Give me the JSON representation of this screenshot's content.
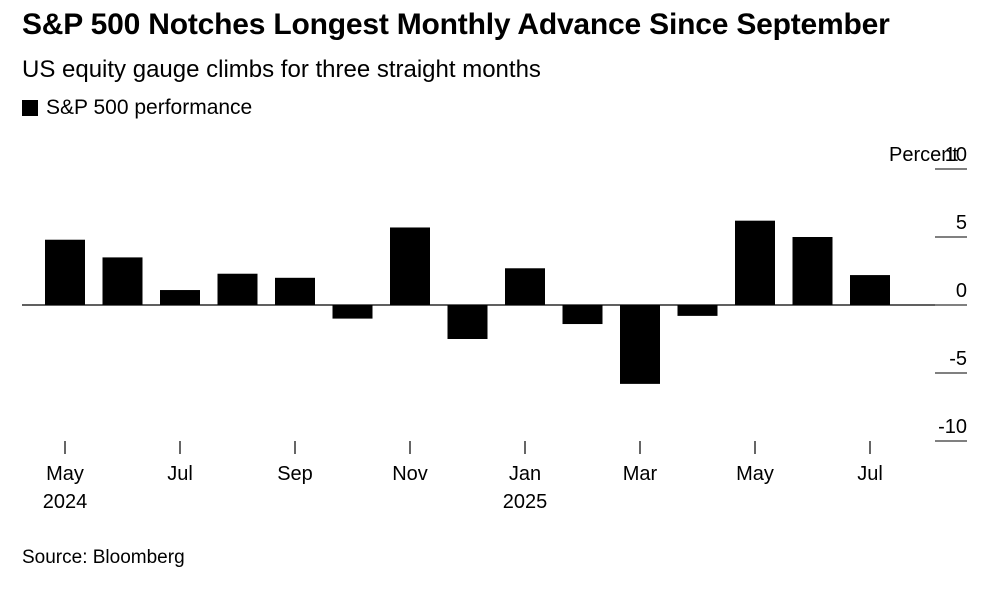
{
  "title": "S&P 500 Notches Longest Monthly Advance Since September",
  "subtitle": "US equity gauge climbs for three straight months",
  "legend": {
    "label": "S&P 500 performance",
    "color": "#000000"
  },
  "source": "Source: Bloomberg",
  "chart_data": {
    "type": "bar",
    "title": "S&P 500 Notches Longest Monthly Advance Since September",
    "subtitle": "US equity gauge climbs for three straight months",
    "unit": "Percent",
    "categories": [
      "May 2024",
      "Jun 2024",
      "Jul 2024",
      "Aug 2024",
      "Sep 2024",
      "Oct 2024",
      "Nov 2024",
      "Dec 2024",
      "Jan 2025",
      "Feb 2025",
      "Mar 2025",
      "Apr 2025",
      "May 2025",
      "Jun 2025",
      "Jul 2025"
    ],
    "series": [
      {
        "name": "S&P 500 performance",
        "values": [
          4.8,
          3.5,
          1.1,
          2.3,
          2.0,
          -1.0,
          5.7,
          -2.5,
          2.7,
          -1.4,
          -5.8,
          -0.8,
          6.2,
          5.0,
          2.2
        ]
      }
    ],
    "ylim": [
      -10,
      10
    ],
    "yticks": [
      10,
      5,
      0,
      -5,
      -10
    ],
    "ytick_labels": [
      "10",
      "5",
      "0",
      "-5",
      "-10"
    ],
    "xtick_labels": [
      {
        "index": 0,
        "line1": "May",
        "line2": "2024"
      },
      {
        "index": 2,
        "line1": "Jul",
        "line2": ""
      },
      {
        "index": 4,
        "line1": "Sep",
        "line2": ""
      },
      {
        "index": 6,
        "line1": "Nov",
        "line2": ""
      },
      {
        "index": 8,
        "line1": "Jan",
        "line2": "2025"
      },
      {
        "index": 10,
        "line1": "Mar",
        "line2": ""
      },
      {
        "index": 12,
        "line1": "May",
        "line2": ""
      },
      {
        "index": 14,
        "line1": "Jul",
        "line2": ""
      }
    ],
    "bar_color": "#000000",
    "grid": false,
    "legend_position": "top-left",
    "y_axis_side": "right"
  }
}
